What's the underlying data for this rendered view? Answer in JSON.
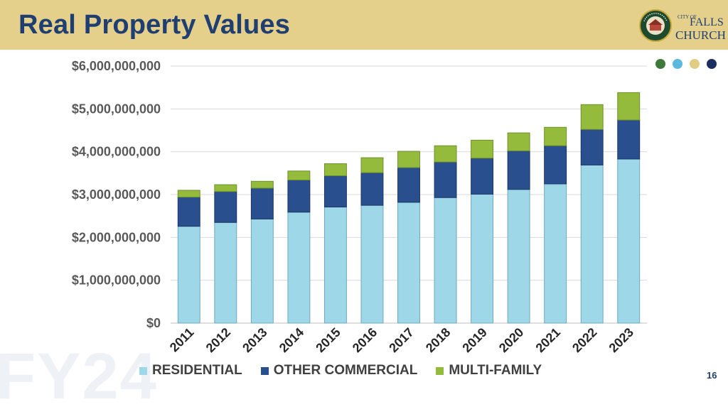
{
  "header": {
    "title": "Real Property Values",
    "logo": {
      "seal_text": "CITY OF FALLS CHURCH VIRGINIA",
      "city_of": "CITY OF",
      "name_line1": "FALLS",
      "name_line2": "CHURCH"
    }
  },
  "watermark": "FY24",
  "page_number": "16",
  "colors": {
    "header_band": "#e4d08a",
    "title": "#1f3f73",
    "residential": "#9dd7e8",
    "other_commercial": "#2a4f8e",
    "multi_family": "#94bb3c",
    "dots": [
      "#3f7a3b",
      "#5bb8de",
      "#e0cd83",
      "#1d2f5e"
    ]
  },
  "chart_data": {
    "type": "bar",
    "stacked": true,
    "categories": [
      "2011",
      "2012",
      "2013",
      "2014",
      "2015",
      "2016",
      "2017",
      "2018",
      "2019",
      "2020",
      "2021",
      "2022",
      "2023"
    ],
    "series": [
      {
        "name": "RESIDENTIAL",
        "values": [
          2260000000,
          2350000000,
          2430000000,
          2590000000,
          2710000000,
          2750000000,
          2820000000,
          2930000000,
          3010000000,
          3120000000,
          3250000000,
          3690000000,
          3830000000
        ]
      },
      {
        "name": "OTHER COMMERCIAL",
        "values": [
          680000000,
          720000000,
          720000000,
          750000000,
          730000000,
          760000000,
          810000000,
          830000000,
          840000000,
          900000000,
          890000000,
          830000000,
          910000000
        ]
      },
      {
        "name": "MULTI-FAMILY",
        "values": [
          160000000,
          160000000,
          160000000,
          210000000,
          280000000,
          350000000,
          380000000,
          380000000,
          420000000,
          420000000,
          430000000,
          580000000,
          640000000
        ]
      }
    ],
    "ylim": [
      0,
      6000000000
    ],
    "yticks": [
      "$0",
      "$1,000,000,000",
      "$2,000,000,000",
      "$3,000,000,000",
      "$4,000,000,000",
      "$5,000,000,000",
      "$6,000,000,000"
    ],
    "grid": true,
    "legend_position": "bottom"
  }
}
